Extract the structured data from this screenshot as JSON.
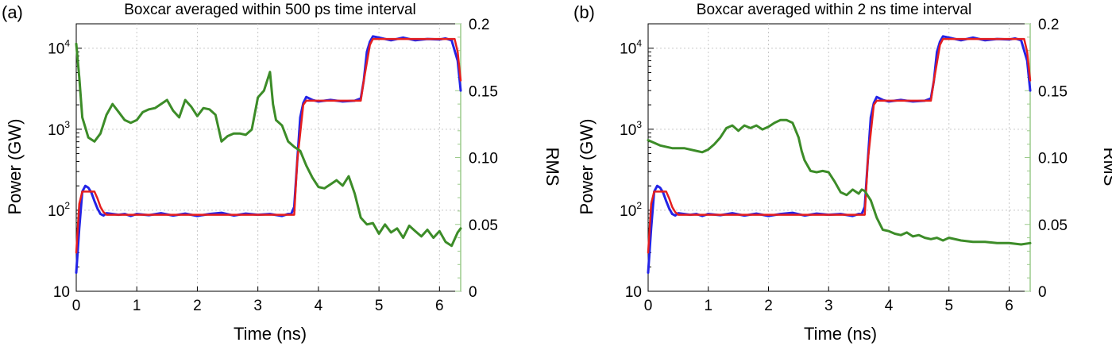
{
  "colors": {
    "power_measured": "#2323e6",
    "power_step": "#e61e1e",
    "rms": "#3c8c28",
    "grid": "#c8c8c8",
    "right_axis": "#9ccb8c"
  },
  "chart_data": [
    {
      "type": "line",
      "panel_label": "(a)",
      "title": "Boxcar averaged within 500 ps time interval",
      "xlabel": "Time (ns)",
      "ylabel": "Power (GW)",
      "y2label": "RMS",
      "xlim": [
        0,
        6.35
      ],
      "ylim": [
        10,
        20000
      ],
      "yscale": "log",
      "y2lim": [
        0,
        0.2
      ],
      "grid": true,
      "x_ticks": [
        "0",
        "1",
        "2",
        "3",
        "4",
        "5",
        "6"
      ],
      "y_ticks": [
        {
          "base": "10",
          "exp": ""
        },
        {
          "base": "10",
          "exp": "2"
        },
        {
          "base": "10",
          "exp": "3"
        },
        {
          "base": "10",
          "exp": "4"
        }
      ],
      "y2_ticks": [
        "0",
        "0.05",
        "0.10",
        "0.15",
        "0.2"
      ],
      "series": [
        {
          "role": "power_measured",
          "axis": "left",
          "x": [
            0,
            0.05,
            0.1,
            0.15,
            0.2,
            0.25,
            0.3,
            0.35,
            0.4,
            0.45,
            0.5,
            0.6,
            0.7,
            0.8,
            0.9,
            1.0,
            1.2,
            1.4,
            1.6,
            1.8,
            2.0,
            2.2,
            2.4,
            2.6,
            2.8,
            3.0,
            3.2,
            3.4,
            3.5,
            3.55,
            3.6,
            3.65,
            3.7,
            3.75,
            3.8,
            3.9,
            4.0,
            4.2,
            4.4,
            4.6,
            4.7,
            4.75,
            4.8,
            4.85,
            4.9,
            5.0,
            5.2,
            5.4,
            5.6,
            5.8,
            6.0,
            6.1,
            6.2,
            6.3,
            6.35
          ],
          "y": [
            17,
            60,
            170,
            200,
            190,
            165,
            130,
            105,
            90,
            86,
            92,
            90,
            88,
            90,
            85,
            90,
            87,
            92,
            86,
            91,
            85,
            90,
            93,
            86,
            91,
            88,
            90,
            85,
            90,
            90,
            110,
            400,
            1400,
            2100,
            2500,
            2300,
            2200,
            2300,
            2200,
            2250,
            2400,
            4000,
            9000,
            12000,
            14000,
            13500,
            12500,
            13500,
            12500,
            13000,
            12800,
            13200,
            12500,
            7000,
            3000
          ]
        },
        {
          "role": "power_step",
          "axis": "left",
          "x": [
            0,
            0.05,
            0.1,
            0.15,
            0.3,
            0.35,
            0.4,
            0.45,
            0.5,
            3.6,
            3.65,
            3.75,
            3.8,
            4.7,
            4.75,
            4.85,
            4.9,
            6.25,
            6.3,
            6.35
          ],
          "y": [
            30,
            120,
            170,
            170,
            170,
            140,
            110,
            95,
            88,
            88,
            400,
            2000,
            2250,
            2250,
            4000,
            11000,
            13000,
            13000,
            9000,
            4000
          ]
        },
        {
          "role": "rms",
          "axis": "right",
          "x": [
            0,
            0.05,
            0.1,
            0.2,
            0.3,
            0.4,
            0.5,
            0.6,
            0.7,
            0.8,
            0.9,
            1.0,
            1.1,
            1.2,
            1.3,
            1.4,
            1.5,
            1.6,
            1.7,
            1.8,
            1.9,
            2.0,
            2.1,
            2.2,
            2.3,
            2.4,
            2.5,
            2.6,
            2.7,
            2.8,
            2.9,
            3.0,
            3.1,
            3.2,
            3.25,
            3.3,
            3.4,
            3.5,
            3.6,
            3.7,
            3.8,
            3.9,
            4.0,
            4.1,
            4.2,
            4.3,
            4.4,
            4.5,
            4.6,
            4.7,
            4.8,
            4.9,
            5.0,
            5.1,
            5.2,
            5.3,
            5.4,
            5.5,
            5.6,
            5.7,
            5.8,
            5.9,
            6.0,
            6.1,
            6.2,
            6.3,
            6.35
          ],
          "y": [
            0.185,
            0.16,
            0.13,
            0.115,
            0.112,
            0.118,
            0.132,
            0.14,
            0.134,
            0.128,
            0.126,
            0.128,
            0.134,
            0.136,
            0.137,
            0.14,
            0.143,
            0.135,
            0.13,
            0.143,
            0.138,
            0.131,
            0.137,
            0.136,
            0.132,
            0.112,
            0.116,
            0.118,
            0.118,
            0.117,
            0.121,
            0.145,
            0.15,
            0.164,
            0.14,
            0.128,
            0.124,
            0.112,
            0.108,
            0.105,
            0.094,
            0.085,
            0.078,
            0.077,
            0.08,
            0.083,
            0.079,
            0.086,
            0.073,
            0.055,
            0.05,
            0.051,
            0.043,
            0.05,
            0.044,
            0.047,
            0.04,
            0.049,
            0.045,
            0.041,
            0.046,
            0.04,
            0.045,
            0.037,
            0.034,
            0.044,
            0.047
          ]
        }
      ]
    },
    {
      "type": "line",
      "panel_label": "(b)",
      "title": "Boxcar averaged within 2 ns time interval",
      "xlabel": "Time (ns)",
      "ylabel": "Power (GW)",
      "y2label": "RMS",
      "xlim": [
        0,
        6.35
      ],
      "ylim": [
        10,
        20000
      ],
      "yscale": "log",
      "y2lim": [
        0,
        0.2
      ],
      "grid": true,
      "x_ticks": [
        "0",
        "1",
        "2",
        "3",
        "4",
        "5",
        "6"
      ],
      "y_ticks": [
        {
          "base": "10",
          "exp": ""
        },
        {
          "base": "10",
          "exp": "2"
        },
        {
          "base": "10",
          "exp": "3"
        },
        {
          "base": "10",
          "exp": "4"
        }
      ],
      "y2_ticks": [
        "0",
        "0.05",
        "0.10",
        "0.15",
        "0.2"
      ],
      "series": [
        {
          "role": "power_measured",
          "axis": "left",
          "x": [
            0,
            0.05,
            0.1,
            0.15,
            0.2,
            0.25,
            0.3,
            0.35,
            0.4,
            0.45,
            0.5,
            0.6,
            0.7,
            0.8,
            0.9,
            1.0,
            1.2,
            1.4,
            1.6,
            1.8,
            2.0,
            2.2,
            2.4,
            2.6,
            2.8,
            3.0,
            3.2,
            3.4,
            3.5,
            3.55,
            3.6,
            3.65,
            3.7,
            3.75,
            3.8,
            3.9,
            4.0,
            4.2,
            4.4,
            4.6,
            4.7,
            4.75,
            4.8,
            4.85,
            4.9,
            5.0,
            5.2,
            5.4,
            5.6,
            5.8,
            6.0,
            6.1,
            6.2,
            6.3,
            6.35
          ],
          "y": [
            17,
            60,
            170,
            200,
            190,
            165,
            130,
            105,
            90,
            86,
            92,
            90,
            88,
            90,
            85,
            90,
            87,
            92,
            86,
            91,
            85,
            90,
            93,
            86,
            91,
            88,
            90,
            85,
            90,
            90,
            110,
            400,
            1400,
            2100,
            2500,
            2300,
            2200,
            2300,
            2200,
            2250,
            2400,
            4000,
            9000,
            12000,
            14000,
            13500,
            12500,
            13500,
            12500,
            13000,
            12800,
            13200,
            12500,
            7000,
            3000
          ]
        },
        {
          "role": "power_step",
          "axis": "left",
          "x": [
            0,
            0.05,
            0.1,
            0.15,
            0.3,
            0.35,
            0.4,
            0.45,
            0.5,
            3.6,
            3.65,
            3.75,
            3.8,
            4.7,
            4.75,
            4.85,
            4.9,
            6.25,
            6.3,
            6.35
          ],
          "y": [
            30,
            120,
            170,
            170,
            170,
            140,
            110,
            95,
            88,
            88,
            400,
            2000,
            2250,
            2250,
            4000,
            11000,
            13000,
            13000,
            9000,
            4000
          ]
        },
        {
          "role": "rms",
          "axis": "right",
          "x": [
            0,
            0.2,
            0.4,
            0.6,
            0.8,
            0.9,
            1.0,
            1.1,
            1.2,
            1.3,
            1.4,
            1.5,
            1.6,
            1.7,
            1.8,
            1.9,
            2.0,
            2.1,
            2.2,
            2.3,
            2.4,
            2.5,
            2.55,
            2.6,
            2.7,
            2.8,
            2.9,
            3.0,
            3.1,
            3.2,
            3.3,
            3.4,
            3.5,
            3.55,
            3.6,
            3.7,
            3.8,
            3.9,
            4.0,
            4.1,
            4.2,
            4.3,
            4.4,
            4.5,
            4.6,
            4.7,
            4.8,
            4.9,
            5.0,
            5.2,
            5.4,
            5.6,
            5.8,
            6.0,
            6.2,
            6.35
          ],
          "y": [
            0.113,
            0.109,
            0.107,
            0.107,
            0.105,
            0.104,
            0.106,
            0.11,
            0.115,
            0.122,
            0.124,
            0.12,
            0.124,
            0.122,
            0.124,
            0.121,
            0.123,
            0.126,
            0.128,
            0.128,
            0.126,
            0.115,
            0.105,
            0.098,
            0.09,
            0.089,
            0.09,
            0.089,
            0.082,
            0.074,
            0.072,
            0.076,
            0.073,
            0.076,
            0.075,
            0.068,
            0.055,
            0.046,
            0.045,
            0.043,
            0.042,
            0.044,
            0.041,
            0.042,
            0.04,
            0.039,
            0.04,
            0.038,
            0.04,
            0.038,
            0.037,
            0.037,
            0.036,
            0.036,
            0.035,
            0.036
          ]
        }
      ]
    }
  ]
}
